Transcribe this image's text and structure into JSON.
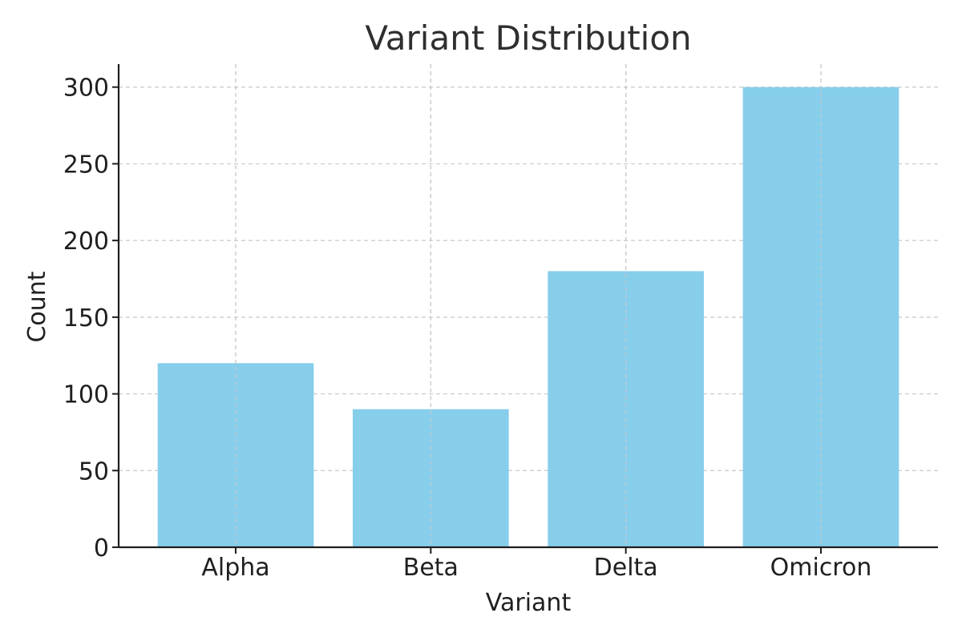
{
  "colors": {
    "bar": "#87CEEB",
    "axis": "#1f1f1f",
    "grid": "#c8c8c8",
    "title": "#2f2f2f",
    "background": "#ffffff"
  },
  "chart_data": {
    "type": "bar",
    "title": "Variant Distribution",
    "xlabel": "Variant",
    "ylabel": "Count",
    "categories": [
      "Alpha",
      "Beta",
      "Delta",
      "Omicron"
    ],
    "values": [
      120,
      90,
      180,
      300
    ],
    "ylim": [
      0,
      315
    ],
    "yticks": [
      "0",
      "50",
      "100",
      "150",
      "200",
      "250",
      "300"
    ],
    "grid": true
  }
}
